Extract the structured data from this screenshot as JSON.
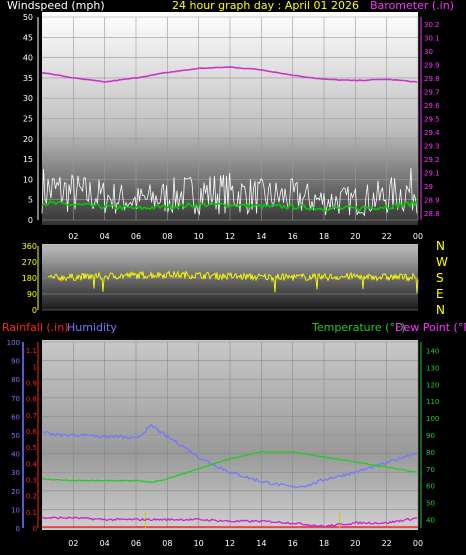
{
  "header": {
    "windspeed_label": "Windspeed (mph)",
    "title": "24 hour graph day : April 01 2026",
    "barometer_label": "Barometer (.in)"
  },
  "lower_header": {
    "rainfall_label": "Rainfall (.in)",
    "humidity_label": "Humidity",
    "temperature_label": "Temperature (°F)",
    "dewpoint_label": "Dew Point (°F)"
  },
  "compass": [
    "N",
    "W",
    "S",
    "E",
    "N"
  ],
  "colors": {
    "windspeed": "#ffffff",
    "wind_avg": "#00cc00",
    "barometer": "#cc33cc",
    "direction": "#ffff00",
    "rainfall": "#ff2222",
    "humidity": "#7777ff",
    "temperature": "#22cc22",
    "dewpoint": "#cc22cc",
    "rain_bars": "#cccc00"
  },
  "chart_data": [
    {
      "type": "line",
      "title": "24 hour graph day : April 01 2026",
      "ylabel": "Windspeed (mph)",
      "y2label": "Barometer (.in)",
      "x_ticks": [
        "02",
        "04",
        "06",
        "08",
        "10",
        "12",
        "14",
        "16",
        "18",
        "20",
        "22",
        "00"
      ],
      "ylim": [
        0,
        50
      ],
      "y_ticks": [
        0,
        5,
        10,
        15,
        20,
        25,
        30,
        35,
        40,
        45,
        50
      ],
      "y2lim": [
        28.7,
        30.3
      ],
      "y2_ticks": [
        "28.8",
        "28.9",
        "29",
        "29.1",
        "29.2",
        "29.3",
        "29.4",
        "29.5",
        "29.6",
        "29.7",
        "29.8",
        "29.9",
        "30",
        "30.1",
        "30.2"
      ],
      "series": [
        {
          "name": "Windspeed (mph)",
          "x": [
            0,
            2,
            4,
            6,
            8,
            10,
            12,
            14,
            16,
            18,
            20,
            22,
            24
          ],
          "values": [
            8,
            7,
            6,
            5,
            6,
            7,
            7,
            6,
            6,
            5,
            5,
            6,
            8
          ]
        },
        {
          "name": "Barometer (.in)",
          "x": [
            0,
            2,
            4,
            6,
            8,
            10,
            12,
            14,
            16,
            18,
            20,
            22,
            24
          ],
          "values": [
            29.84,
            29.8,
            29.77,
            29.8,
            29.84,
            29.87,
            29.88,
            29.86,
            29.82,
            29.79,
            29.78,
            29.79,
            29.77
          ]
        }
      ]
    },
    {
      "type": "line",
      "x_ticks": [
        "02",
        "04",
        "06",
        "08",
        "10",
        "12",
        "14",
        "16",
        "18",
        "20",
        "22",
        "00"
      ],
      "ylim": [
        0,
        360
      ],
      "y_ticks": [
        0,
        90,
        180,
        270,
        360
      ],
      "series": [
        {
          "x": [
            0,
            2,
            4,
            6,
            8,
            10,
            12,
            14,
            16,
            18,
            20,
            22,
            24
          ],
          "values": [
            180,
            185,
            190,
            195,
            200,
            195,
            190,
            185,
            185,
            185,
            190,
            185,
            185
          ]
        }
      ]
    },
    {
      "type": "line",
      "x_ticks": [
        "02",
        "04",
        "06",
        "08",
        "10",
        "12",
        "14",
        "16",
        "18",
        "20",
        "22",
        "00"
      ],
      "ylim": [
        0,
        100
      ],
      "y_ticks": [
        0,
        10,
        20,
        30,
        40,
        50,
        60,
        70,
        80,
        90,
        100
      ],
      "rain_ticks": [
        "0",
        "0.1",
        "0.2",
        "0.3",
        "0.4",
        "0.5",
        "0.6",
        "0.7",
        "0.8",
        "0.9",
        "1",
        "1.1"
      ],
      "temp_ticks": [
        40,
        50,
        60,
        70,
        80,
        90,
        100,
        110,
        120,
        130,
        140
      ],
      "series": [
        {
          "name": "Humidity",
          "x": [
            0,
            1,
            2,
            3,
            4,
            5,
            6,
            7,
            8,
            9,
            10,
            12,
            14,
            16,
            17,
            18,
            20,
            22,
            24
          ],
          "values": [
            52,
            50,
            50,
            50,
            49,
            49,
            48,
            55,
            49,
            44,
            38,
            30,
            25,
            22,
            23,
            26,
            30,
            35,
            41
          ]
        },
        {
          "name": "Temperature (°F)",
          "x": [
            0,
            2,
            4,
            6,
            7,
            8,
            10,
            12,
            14,
            16,
            18,
            20,
            22,
            24
          ],
          "values": [
            64,
            63,
            63,
            63,
            62,
            64,
            70,
            76,
            80,
            80,
            77,
            74,
            71,
            68
          ]
        },
        {
          "name": "Dew Point (°F)",
          "x": [
            0,
            2,
            4,
            6,
            8,
            10,
            12,
            14,
            16,
            18,
            20,
            22,
            24
          ],
          "values": [
            41,
            41,
            40,
            40,
            40,
            40,
            39,
            39,
            38,
            36,
            38,
            38,
            41
          ]
        },
        {
          "name": "Rainfall (.in)",
          "x": [
            0,
            24
          ],
          "values": [
            0,
            0
          ]
        }
      ]
    }
  ]
}
